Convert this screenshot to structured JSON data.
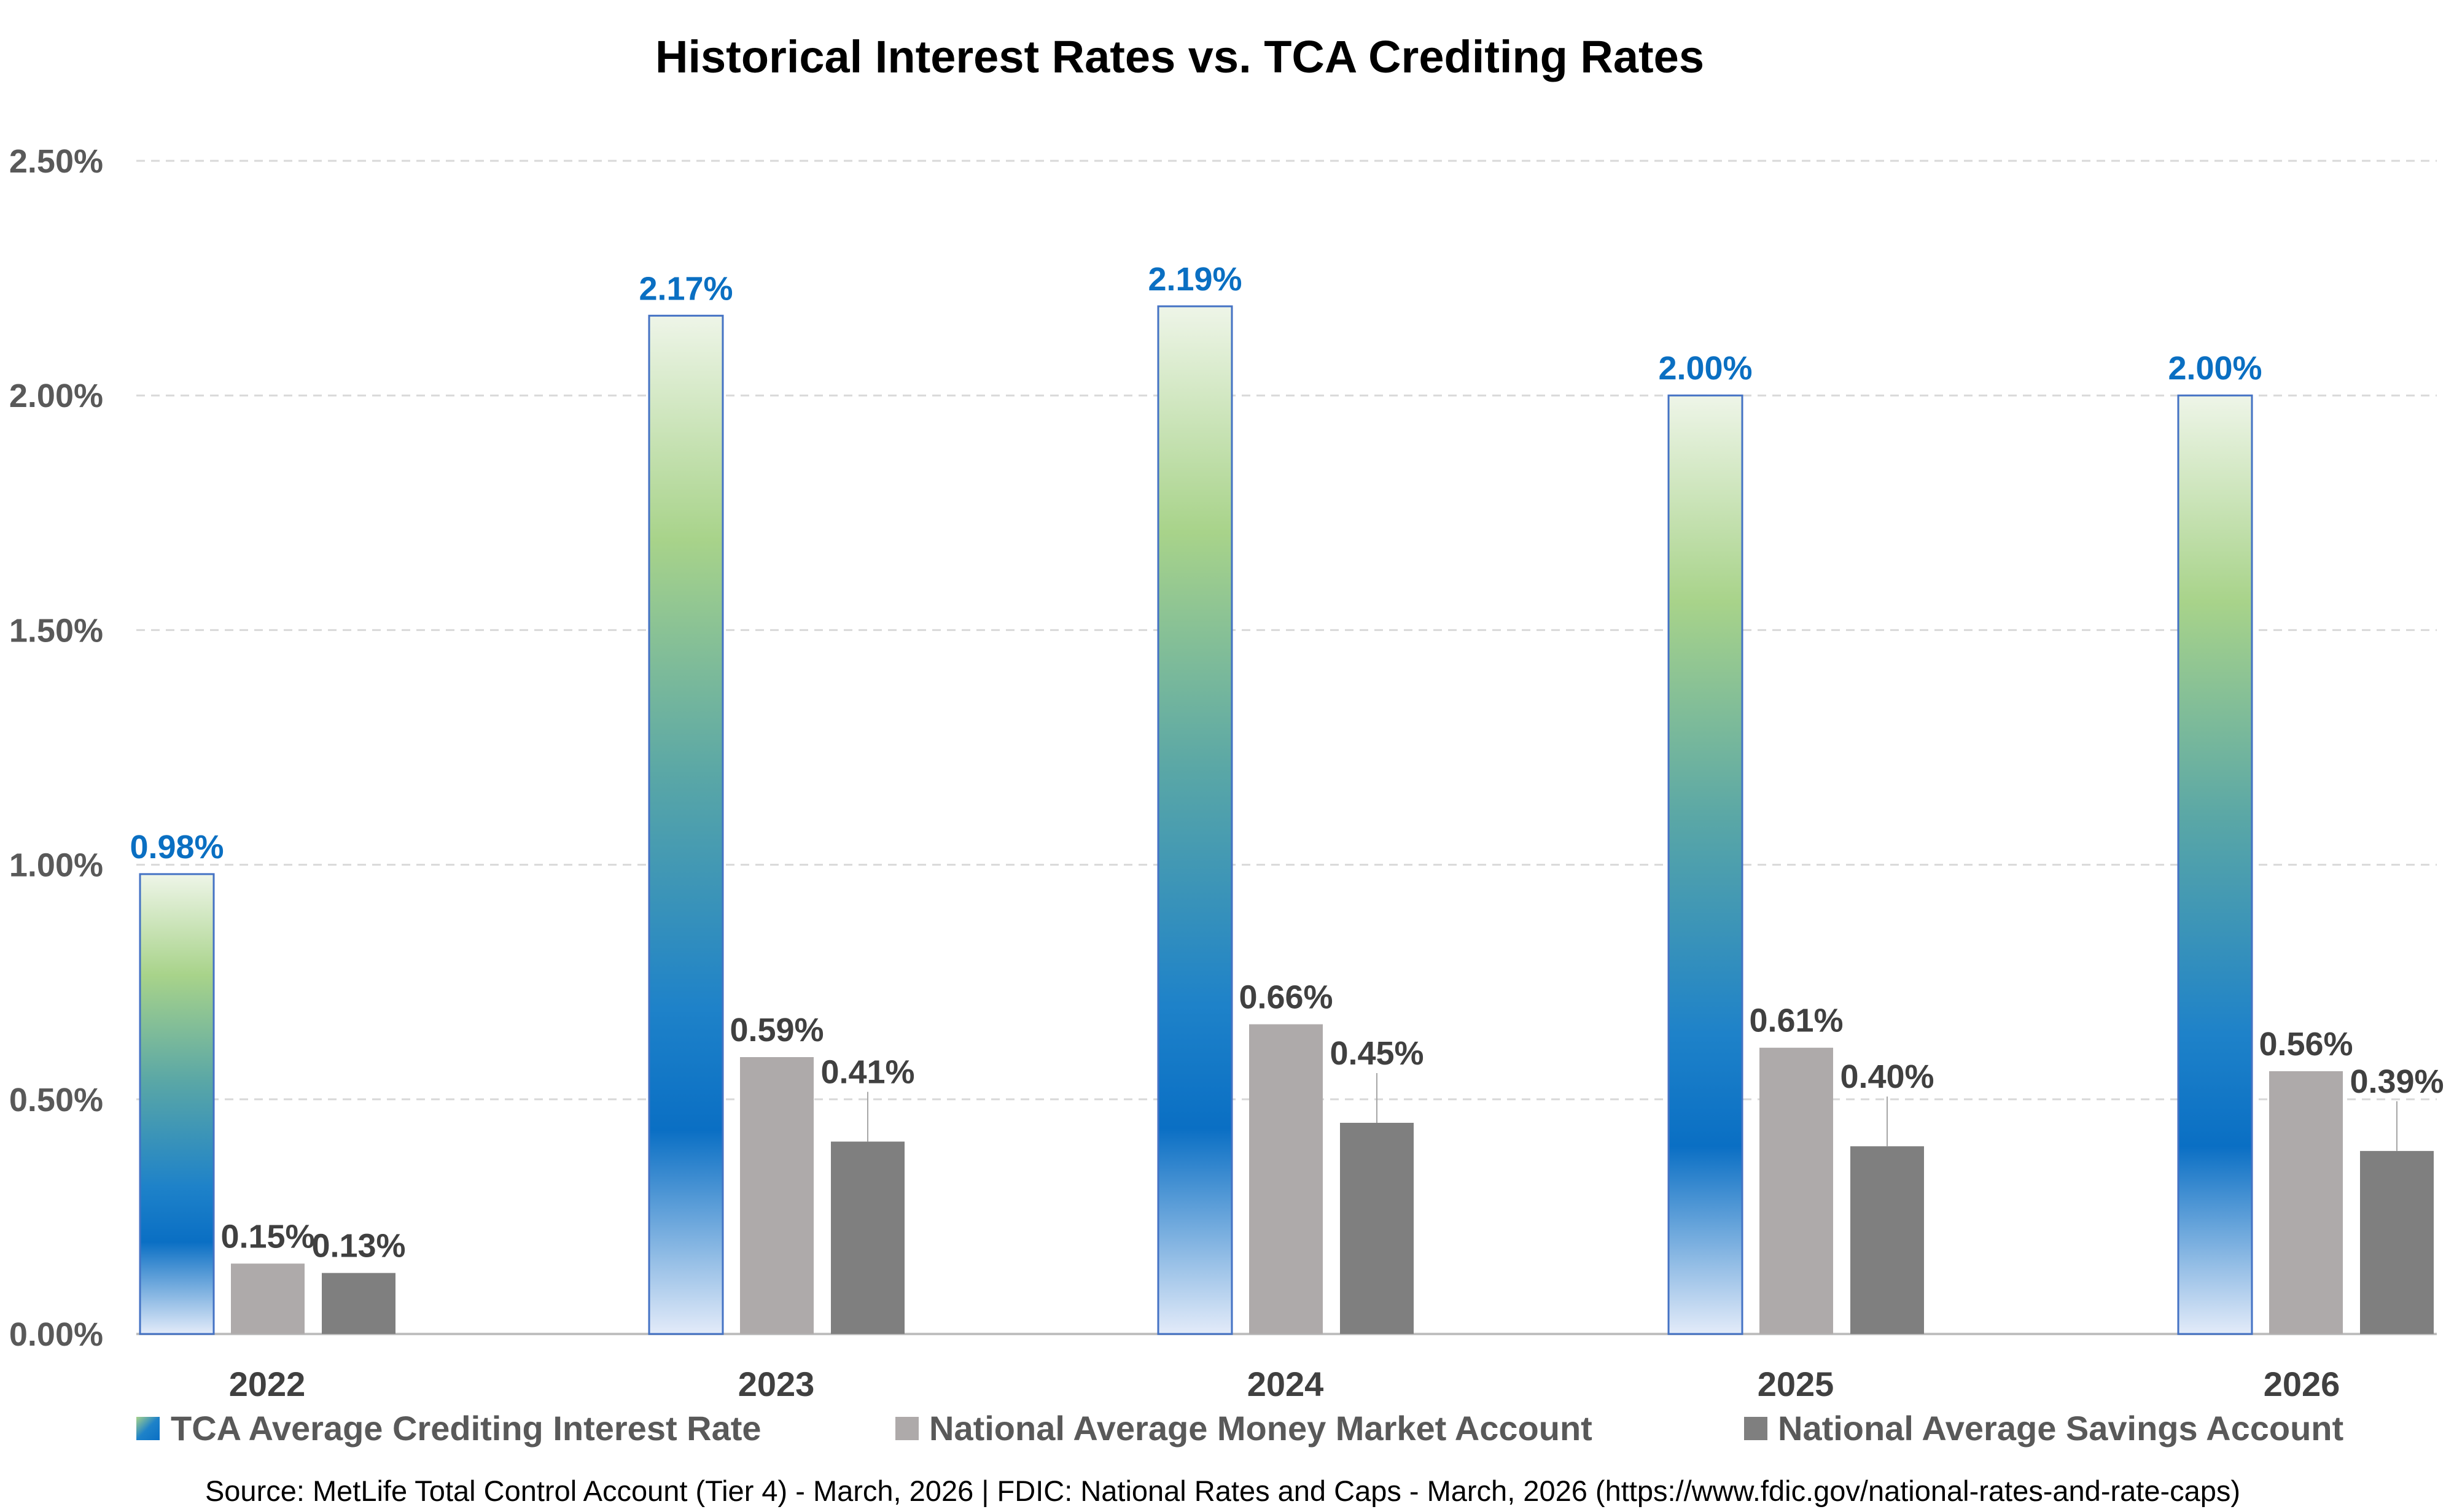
{
  "chart_data": {
    "type": "bar",
    "title": "Historical Interest Rates vs. TCA Crediting Rates",
    "categories": [
      "2022",
      "2023",
      "2024",
      "2025",
      "2026"
    ],
    "series": [
      {
        "name": "TCA Average Crediting Interest Rate",
        "values": [
          0.98,
          2.17,
          2.19,
          2.0,
          2.0
        ],
        "labels": [
          "0.98%",
          "2.17%",
          "2.19%",
          "2.00%",
          "2.00%"
        ],
        "color": "#0070c0"
      },
      {
        "name": "National Average Money Market Account",
        "values": [
          0.15,
          0.59,
          0.66,
          0.61,
          0.56
        ],
        "labels": [
          "0.15%",
          "0.59%",
          "0.66%",
          "0.61%",
          "0.56%"
        ],
        "color": "#aeaaaa"
      },
      {
        "name": "National Average Savings Account",
        "values": [
          0.13,
          0.41,
          0.45,
          0.4,
          0.39
        ],
        "labels": [
          "0.13%",
          "0.41%",
          "0.45%",
          "0.40%",
          "0.39%"
        ],
        "color": "#7f7f7f"
      }
    ],
    "y_ticks": [
      "0.00%",
      "0.50%",
      "1.00%",
      "1.50%",
      "2.00%",
      "2.50%"
    ],
    "ylim": [
      0,
      2.5
    ],
    "xlabel": "",
    "ylabel": "",
    "grid": true,
    "legend_position": "bottom",
    "source": "Source: MetLife Total Control Account (Tier 4) - March, 2026 | FDIC: National Rates and Caps - March, 2026 (https://www.fdic.gov/national-rates-and-rate-caps)"
  }
}
